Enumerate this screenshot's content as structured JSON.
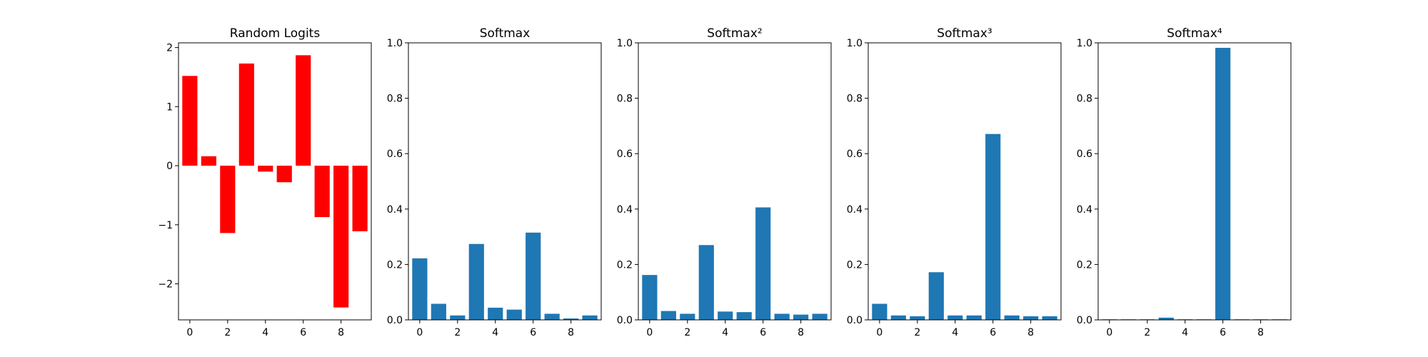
{
  "chart_data": [
    {
      "type": "bar",
      "title": "Random Logits",
      "xlabel": "",
      "ylabel": "",
      "bar_color": "#ff0000",
      "categories": [
        0,
        1,
        2,
        3,
        4,
        5,
        6,
        7,
        8,
        9
      ],
      "values": [
        1.52,
        0.16,
        -1.14,
        1.73,
        -0.1,
        -0.28,
        1.87,
        -0.87,
        -2.4,
        -1.11
      ],
      "xlim": [
        -0.6,
        9.6
      ],
      "ylim": [
        -2.61,
        2.08
      ],
      "xticks": [
        0,
        2,
        4,
        6,
        8
      ],
      "xtick_labels": [
        "0",
        "2",
        "4",
        "6",
        "8"
      ],
      "yticks": [
        -2,
        -1,
        0,
        1,
        2
      ],
      "ytick_labels": [
        "−2",
        "−1",
        "0",
        "1",
        "2"
      ]
    },
    {
      "type": "bar",
      "title": "Softmax",
      "xlabel": "",
      "ylabel": "",
      "bar_color": "#1f77b4",
      "categories": [
        0,
        1,
        2,
        3,
        4,
        5,
        6,
        7,
        8,
        9
      ],
      "values": [
        0.222,
        0.058,
        0.016,
        0.274,
        0.044,
        0.037,
        0.315,
        0.022,
        0.005,
        0.016
      ],
      "xlim": [
        -0.6,
        9.6
      ],
      "ylim": [
        0,
        1.0
      ],
      "xticks": [
        0,
        2,
        4,
        6,
        8
      ],
      "xtick_labels": [
        "0",
        "2",
        "4",
        "6",
        "8"
      ],
      "yticks": [
        0,
        0.2,
        0.4,
        0.6,
        0.8,
        1.0
      ],
      "ytick_labels": [
        "0.0",
        "0.2",
        "0.4",
        "0.6",
        "0.8",
        "1.0"
      ]
    },
    {
      "type": "bar",
      "title": "Softmax²",
      "xlabel": "",
      "ylabel": "",
      "bar_color": "#1f77b4",
      "categories": [
        0,
        1,
        2,
        3,
        4,
        5,
        6,
        7,
        8,
        9
      ],
      "values": [
        0.162,
        0.032,
        0.022,
        0.27,
        0.03,
        0.028,
        0.406,
        0.022,
        0.019,
        0.022
      ],
      "xlim": [
        -0.6,
        9.6
      ],
      "ylim": [
        0,
        1.0
      ],
      "xticks": [
        0,
        2,
        4,
        6,
        8
      ],
      "xtick_labels": [
        "0",
        "2",
        "4",
        "6",
        "8"
      ],
      "yticks": [
        0,
        0.2,
        0.4,
        0.6,
        0.8,
        1.0
      ],
      "ytick_labels": [
        "0.0",
        "0.2",
        "0.4",
        "0.6",
        "0.8",
        "1.0"
      ]
    },
    {
      "type": "bar",
      "title": "Softmax³",
      "xlabel": "",
      "ylabel": "",
      "bar_color": "#1f77b4",
      "categories": [
        0,
        1,
        2,
        3,
        4,
        5,
        6,
        7,
        8,
        9
      ],
      "values": [
        0.058,
        0.016,
        0.013,
        0.172,
        0.016,
        0.016,
        0.671,
        0.016,
        0.013,
        0.013
      ],
      "xlim": [
        -0.6,
        9.6
      ],
      "ylim": [
        0,
        1.0
      ],
      "xticks": [
        0,
        2,
        4,
        6,
        8
      ],
      "xtick_labels": [
        "0",
        "2",
        "4",
        "6",
        "8"
      ],
      "yticks": [
        0,
        0.2,
        0.4,
        0.6,
        0.8,
        1.0
      ],
      "ytick_labels": [
        "0.0",
        "0.2",
        "0.4",
        "0.6",
        "0.8",
        "1.0"
      ]
    },
    {
      "type": "bar",
      "title": "Softmax⁴",
      "xlabel": "",
      "ylabel": "",
      "bar_color": "#1f77b4",
      "categories": [
        0,
        1,
        2,
        3,
        4,
        5,
        6,
        7,
        8,
        9
      ],
      "values": [
        0.002,
        0.002,
        0.002,
        0.008,
        0.002,
        0.002,
        0.982,
        0.002,
        0.002,
        0.002
      ],
      "xlim": [
        -0.6,
        9.6
      ],
      "ylim": [
        0,
        1.0
      ],
      "xticks": [
        0,
        2,
        4,
        6,
        8
      ],
      "xtick_labels": [
        "0",
        "2",
        "4",
        "6",
        "8"
      ],
      "yticks": [
        0,
        0.2,
        0.4,
        0.6,
        0.8,
        1.0
      ],
      "ytick_labels": [
        "0.0",
        "0.2",
        "0.4",
        "0.6",
        "0.8",
        "1.0"
      ]
    }
  ]
}
